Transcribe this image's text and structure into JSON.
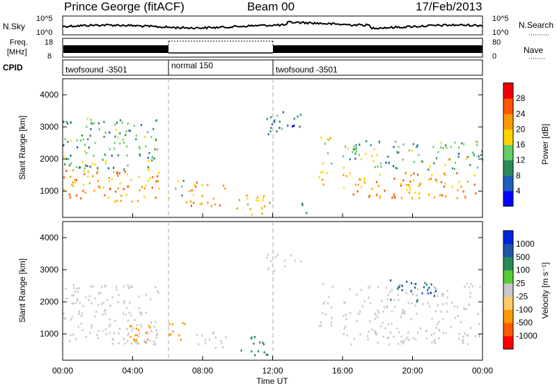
{
  "header": {
    "station": "Prince George (fitACF)",
    "beam": "Beam 00",
    "date": "17/Feb/2013"
  },
  "top_panels": {
    "nsky_label": "N.Sky",
    "nsearch_label": "N.Search",
    "noise_ticks": [
      "10^5",
      "10^0"
    ],
    "freq_label_line1": "Freq.",
    "freq_label_line2": "[MHz]",
    "freq_ticks": [
      "18",
      "8"
    ],
    "nave_label": "Nave",
    "nave_ticks": [
      "80",
      "0"
    ],
    "cpid_label": "CPID",
    "cpid_segments": [
      {
        "label": "twofsound -3501",
        "start_h": 0,
        "end_h": 6
      },
      {
        "label": "normal 150",
        "start_h": 6,
        "end_h": 12
      },
      {
        "label": "twofsound -3501",
        "start_h": 12,
        "end_h": 24
      }
    ]
  },
  "power_colorbar": {
    "label": "Power [dB]",
    "ticks": [
      "28",
      "24",
      "20",
      "16",
      "12",
      "8",
      "4"
    ],
    "colors": [
      "#0000ff",
      "#1f5fbf",
      "#2e8b57",
      "#66cc66",
      "#ffd400",
      "#ff9900",
      "#ff5500",
      "#ee0000"
    ]
  },
  "velocity_colorbar": {
    "label": "Velocity [m s⁻¹]",
    "ticks": [
      "1000",
      "500",
      "100",
      "25",
      "-25",
      "-100",
      "-500",
      "-1000"
    ],
    "colors": [
      "#ff0000",
      "#ff5a00",
      "#ff9900",
      "#ffcc66",
      "#c8c8c8",
      "#55cc33",
      "#2a8a55",
      "#2255aa",
      "#0022dd"
    ]
  },
  "chart_data": [
    {
      "type": "heatmap",
      "panel": "power",
      "xlabel": "",
      "ylabel": "Slant Range [km]",
      "xlim_hours": [
        0,
        24
      ],
      "ylim": [
        180,
        4500
      ],
      "y_ticks": [
        1000,
        2000,
        3000,
        4000
      ],
      "colorbar_label": "Power [dB]",
      "colorbar_range": [
        0,
        30
      ],
      "regions": [
        {
          "t0": 0.0,
          "t1": 5.5,
          "r0": 700,
          "r1": 1700,
          "v": 22
        },
        {
          "t0": 0.0,
          "t1": 5.5,
          "r0": 1700,
          "r1": 3300,
          "v": 12
        },
        {
          "t0": 6.0,
          "t1": 7.0,
          "r0": 800,
          "r1": 1400,
          "v": 14
        },
        {
          "t0": 7.0,
          "t1": 9.3,
          "r0": 550,
          "r1": 1300,
          "v": 23
        },
        {
          "t0": 9.8,
          "t1": 11.8,
          "r0": 300,
          "r1": 950,
          "v": 20
        },
        {
          "t0": 11.5,
          "t1": 13.6,
          "r0": 2800,
          "r1": 3500,
          "v": 8
        },
        {
          "t0": 13.5,
          "t1": 14.6,
          "r0": 300,
          "r1": 700,
          "v": 12
        },
        {
          "t0": 14.6,
          "t1": 15.4,
          "r0": 1200,
          "r1": 2700,
          "v": 18
        },
        {
          "t0": 16.0,
          "t1": 24.0,
          "r0": 800,
          "r1": 1600,
          "v": 22
        },
        {
          "t0": 16.0,
          "t1": 24.0,
          "r0": 1700,
          "r1": 2600,
          "v": 12
        }
      ]
    },
    {
      "type": "heatmap",
      "panel": "velocity",
      "xlabel": "Time UT",
      "ylabel": "Slant Range [km]",
      "xlim_hours": [
        0,
        24
      ],
      "ylim": [
        180,
        4500
      ],
      "x_ticks": [
        "00:00",
        "04:00",
        "08:00",
        "12:00",
        "16:00",
        "20:00",
        "00:00"
      ],
      "y_ticks": [
        1000,
        2000,
        3000,
        4000
      ],
      "colorbar_label": "Velocity [m s⁻¹]",
      "colorbar_range": [
        -1000,
        1000
      ],
      "regions": [
        {
          "t0": 0.0,
          "t1": 5.5,
          "r0": 700,
          "r1": 2600,
          "v": 0
        },
        {
          "t0": 3.5,
          "t1": 5.5,
          "r0": 700,
          "r1": 1300,
          "v": -300
        },
        {
          "t0": 6.0,
          "t1": 7.0,
          "r0": 800,
          "r1": 1400,
          "v": -400
        },
        {
          "t0": 7.5,
          "t1": 9.3,
          "r0": 550,
          "r1": 1100,
          "v": 0
        },
        {
          "t0": 9.8,
          "t1": 11.8,
          "r0": 300,
          "r1": 950,
          "v": 150
        },
        {
          "t0": 11.5,
          "t1": 13.6,
          "r0": 3000,
          "r1": 3500,
          "v": 0
        },
        {
          "t0": 14.6,
          "t1": 15.4,
          "r0": 1200,
          "r1": 2700,
          "v": 0
        },
        {
          "t0": 16.0,
          "t1": 24.0,
          "r0": 700,
          "r1": 2600,
          "v": 0
        },
        {
          "t0": 18.5,
          "t1": 21.5,
          "r0": 2000,
          "r1": 2700,
          "v": 600
        }
      ]
    }
  ]
}
